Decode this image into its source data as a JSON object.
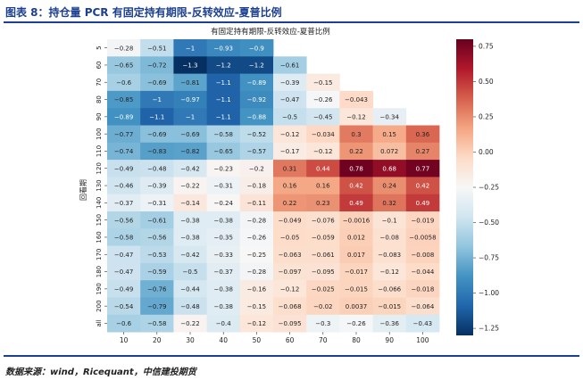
{
  "header": {
    "figure_title": "图表 8：持仓量 PCR 有固定持有期限-反转效应-夏普比例"
  },
  "footer": {
    "source": "数据来源：wind，Ricequant，中信建投期货"
  },
  "chart_data": {
    "type": "heatmap",
    "title": "有固定持有期限-反转效应-夏普比例",
    "xlabel": "",
    "ylabel": "回看期",
    "x": [
      "10",
      "20",
      "30",
      "40",
      "50",
      "60",
      "70",
      "80",
      "90",
      "100"
    ],
    "y": [
      "5",
      "60",
      "70",
      "80",
      "90",
      "100",
      "110",
      "120",
      "130",
      "140",
      "150",
      "160",
      "170",
      "180",
      "190",
      "200",
      "all"
    ],
    "values": [
      [
        "-0.28",
        "-0.51",
        "-1",
        "-0.93",
        "-0.9",
        null,
        null,
        null,
        null,
        null
      ],
      [
        "-0.65",
        "-0.72",
        "-1.3",
        "-1.2",
        "-1.2",
        "-0.61",
        null,
        null,
        null,
        null
      ],
      [
        "-0.6",
        "-0.69",
        "-0.81",
        "-1.1",
        "-0.89",
        "-0.39",
        "-0.15",
        null,
        null,
        null
      ],
      [
        "-0.85",
        "-1",
        "-0.97",
        "-1.1",
        "-0.92",
        "-0.47",
        "-0.26",
        "-0.043",
        null,
        null
      ],
      [
        "-0.89",
        "-1.1",
        "-1",
        "-1.1",
        "-0.88",
        "-0.5",
        "-0.45",
        "-0.12",
        "-0.34",
        null
      ],
      [
        "-0.77",
        "-0.69",
        "-0.69",
        "-0.58",
        "-0.52",
        "-0.12",
        "-0.034",
        "0.3",
        "0.15",
        "0.36"
      ],
      [
        "-0.74",
        "-0.83",
        "-0.82",
        "-0.65",
        "-0.57",
        "-0.17",
        "-0.12",
        "0.22",
        "0.072",
        "0.27"
      ],
      [
        "-0.49",
        "-0.48",
        "-0.42",
        "-0.23",
        "-0.2",
        "0.31",
        "0.44",
        "0.78",
        "0.68",
        "0.77"
      ],
      [
        "-0.46",
        "-0.39",
        "-0.22",
        "-0.31",
        "-0.18",
        "0.16",
        "0.16",
        "0.42",
        "0.24",
        "0.42"
      ],
      [
        "-0.37",
        "-0.31",
        "-0.14",
        "-0.24",
        "-0.11",
        "0.22",
        "0.23",
        "0.49",
        "0.32",
        "0.49"
      ],
      [
        "-0.56",
        "-0.61",
        "-0.38",
        "-0.38",
        "-0.28",
        "-0.049",
        "-0.076",
        "-0.0016",
        "-0.1",
        "-0.019"
      ],
      [
        "-0.58",
        "-0.56",
        "-0.38",
        "-0.35",
        "-0.26",
        "-0.05",
        "-0.059",
        "0.012",
        "-0.08",
        "-0.0058"
      ],
      [
        "-0.47",
        "-0.53",
        "-0.42",
        "-0.33",
        "-0.25",
        "-0.063",
        "-0.061",
        "0.017",
        "-0.083",
        "-0.008"
      ],
      [
        "-0.47",
        "-0.59",
        "-0.5",
        "-0.37",
        "-0.28",
        "-0.097",
        "-0.095",
        "-0.017",
        "-0.12",
        "-0.044"
      ],
      [
        "-0.49",
        "-0.76",
        "-0.44",
        "-0.38",
        "-0.16",
        "-0.12",
        "-0.025",
        "-0.015",
        "-0.066",
        "-0.018"
      ],
      [
        "-0.54",
        "-0.79",
        "-0.48",
        "-0.38",
        "-0.15",
        "-0.068",
        "-0.02",
        "0.0037",
        "-0.015",
        "-0.064"
      ],
      [
        "-0.6",
        "-0.58",
        "-0.22",
        "-0.4",
        "-0.12",
        "-0.095",
        "-0.3",
        "-0.26",
        "-0.36",
        "-0.43"
      ]
    ],
    "colorbar": {
      "range": [
        -1.3,
        0.8
      ],
      "ticks": [
        "0.75",
        "0.50",
        "0.25",
        "0.00",
        "−0.25",
        "−0.50",
        "−0.75",
        "−1.00",
        "−1.25"
      ]
    },
    "colormap": "RdBu_r"
  }
}
